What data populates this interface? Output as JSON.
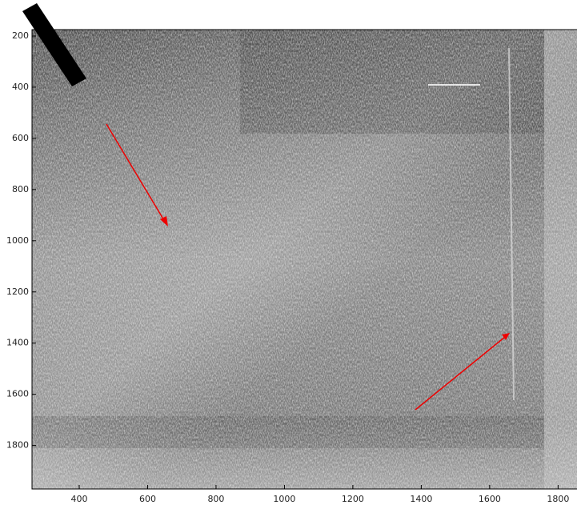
{
  "chart_data": {
    "type": "image",
    "xlim": [
      262,
      1860
    ],
    "ylim": [
      175,
      1970
    ],
    "y_reversed": true,
    "xticks": [
      400,
      600,
      800,
      1000,
      1200,
      1400,
      1600,
      1800
    ],
    "yticks": [
      200,
      400,
      600,
      800,
      1000,
      1200,
      1400,
      1600,
      1800
    ]
  }
}
